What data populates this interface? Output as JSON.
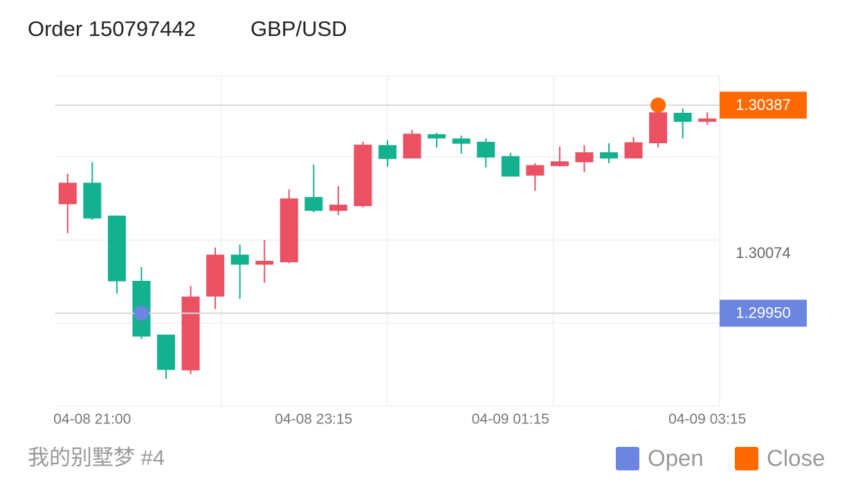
{
  "chart_data": {
    "type": "candlestick",
    "title": "Order 150797442",
    "subtitle": "GBP/USD",
    "footer": "我的别墅梦 #4",
    "categories": [
      null,
      "04-08 21:00",
      null,
      null,
      null,
      null,
      null,
      null,
      null,
      null,
      "04-08 23:15",
      null,
      null,
      null,
      null,
      null,
      null,
      null,
      "04-09 01:15",
      null,
      null,
      null,
      null,
      null,
      null,
      null,
      "04-09 03:15"
    ],
    "open": [
      1.30179,
      1.30224,
      1.30155,
      1.30018,
      1.29905,
      1.2983,
      1.29985,
      1.30073,
      1.30052,
      1.30057,
      1.30194,
      1.30165,
      1.30175,
      1.30303,
      1.30275,
      1.30326,
      1.30317,
      1.3031,
      1.3028,
      1.30239,
      1.30259,
      1.30267,
      1.30288,
      1.30275,
      1.30307,
      1.30371,
      1.30352
    ],
    "high": [
      1.30243,
      1.30267,
      1.30155,
      1.30047,
      1.29905,
      1.30007,
      1.30088,
      1.30094,
      1.30104,
      1.3021,
      1.30262,
      1.30217,
      1.3031,
      1.30313,
      1.30335,
      1.30329,
      1.30323,
      1.30317,
      1.30287,
      1.30265,
      1.303,
      1.30303,
      1.30307,
      1.3032,
      1.30372,
      1.3038,
      1.30372
    ],
    "low": [
      1.30118,
      1.30146,
      1.29991,
      1.29896,
      1.29812,
      1.29822,
      1.29959,
      1.2998,
      1.30014,
      1.30055,
      1.30162,
      1.30156,
      1.30172,
      1.30258,
      1.30275,
      1.30298,
      1.30285,
      1.30256,
      1.30237,
      1.30207,
      1.30258,
      1.30246,
      1.30265,
      1.30275,
      1.30298,
      1.30317,
      1.30346
    ],
    "close": [
      1.30224,
      1.30149,
      1.30017,
      1.29901,
      1.29831,
      1.29985,
      1.30073,
      1.30052,
      1.3006,
      1.30191,
      1.30165,
      1.30178,
      1.30304,
      1.30274,
      1.30327,
      1.30317,
      1.30306,
      1.30277,
      1.30237,
      1.30261,
      1.30269,
      1.30288,
      1.30275,
      1.30309,
      1.30372,
      1.30352,
      1.30359
    ],
    "up_color": "#ea5163",
    "down_color": "#13b18e",
    "ylim": [
      1.29755,
      1.30448
    ],
    "yticks": [
      1.30074
    ],
    "markers": [
      {
        "name": "Open",
        "color": "#6b85e0",
        "index": 3,
        "price": {
          "value": 1.2995,
          "label": "1.29950"
        }
      },
      {
        "name": "Close",
        "color": "#ff6a00",
        "index": 24,
        "price": 1.30387
      }
    ]
  }
}
